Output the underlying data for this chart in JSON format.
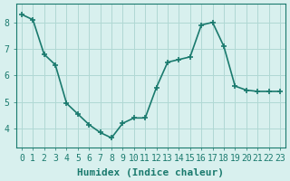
{
  "x": [
    0,
    1,
    2,
    3,
    4,
    5,
    6,
    7,
    8,
    9,
    10,
    11,
    12,
    13,
    14,
    15,
    16,
    17,
    18,
    19,
    20,
    21,
    22,
    23
  ],
  "y": [
    8.3,
    8.1,
    6.8,
    6.4,
    4.95,
    4.55,
    4.15,
    3.85,
    3.65,
    4.2,
    4.4,
    4.4,
    5.55,
    6.5,
    6.6,
    6.7,
    7.9,
    8.0,
    7.1,
    5.6,
    5.45,
    5.4,
    5.4,
    5.4
  ],
  "line_color": "#1a7a6e",
  "marker": "+",
  "markersize": 5,
  "linewidth": 1.2,
  "bg_color": "#d8f0ee",
  "grid_color": "#b0d8d4",
  "xlabel": "Humidex (Indice chaleur)",
  "xlabel_fontsize": 8,
  "tick_fontsize": 7,
  "xlim": [
    -0.5,
    23.5
  ],
  "ylim": [
    3.3,
    8.7
  ],
  "yticks": [
    4,
    5,
    6,
    7,
    8
  ],
  "xticks": [
    0,
    1,
    2,
    3,
    4,
    5,
    6,
    7,
    8,
    9,
    10,
    11,
    12,
    13,
    14,
    15,
    16,
    17,
    18,
    19,
    20,
    21,
    22,
    23
  ]
}
